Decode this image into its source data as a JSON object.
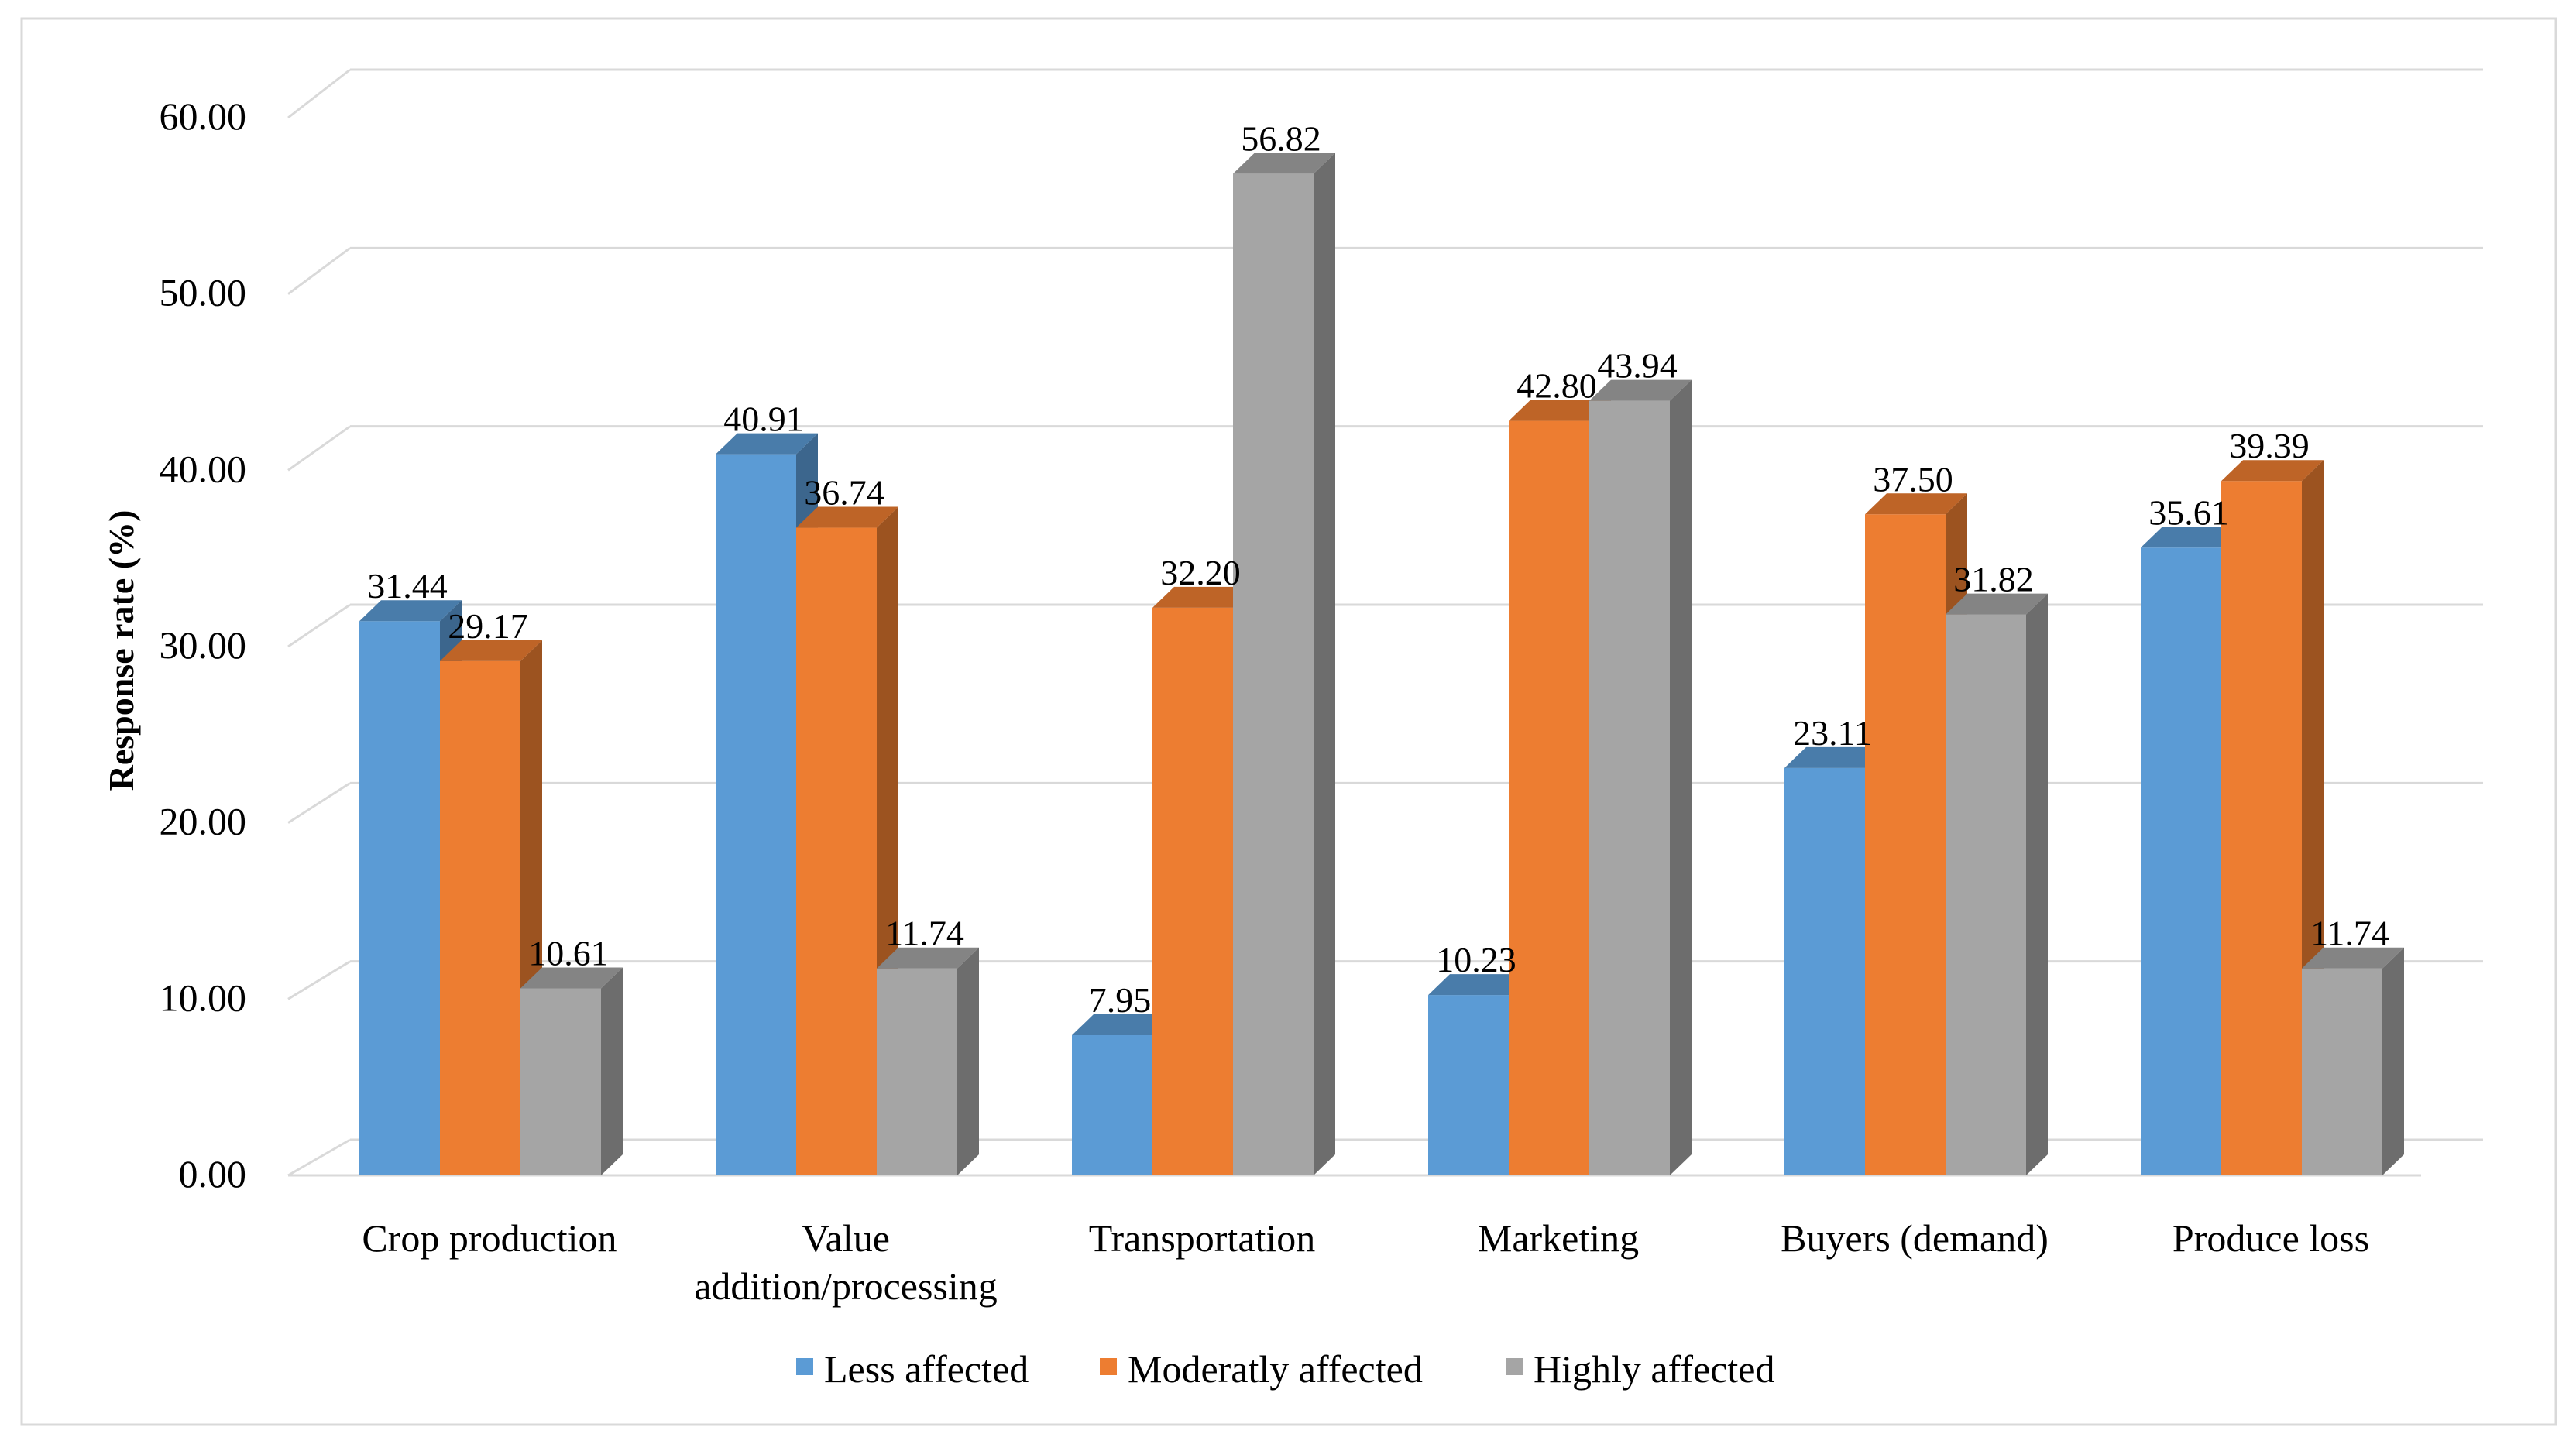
{
  "chart_data": {
    "type": "bar",
    "title": "",
    "xlabel": "",
    "ylabel": "Response rate (%)",
    "ylim": [
      0,
      60
    ],
    "yticks": [
      "0.00",
      "10.00",
      "20.00",
      "30.00",
      "40.00",
      "50.00",
      "60.00"
    ],
    "grid": true,
    "legend_position": "bottom",
    "categories": [
      [
        "Crop production"
      ],
      [
        "Value",
        "addition/processing"
      ],
      [
        "Transportation"
      ],
      [
        "Marketing"
      ],
      [
        "Buyers (demand)"
      ],
      [
        "Produce loss"
      ]
    ],
    "series": [
      {
        "name": "Less affected",
        "color": "#5B9BD5",
        "values": [
          31.44,
          40.91,
          7.95,
          10.23,
          23.11,
          35.61
        ],
        "labels": [
          "31.44",
          "40.91",
          "7.95",
          "10.23",
          "23.11",
          "35.61"
        ]
      },
      {
        "name": "Moderatly affected",
        "color": "#ED7D31",
        "values": [
          29.17,
          36.74,
          32.2,
          42.8,
          37.5,
          39.39
        ],
        "labels": [
          "29.17",
          "36.74",
          "32.20",
          "42.80",
          "37.50",
          "39.39"
        ]
      },
      {
        "name": "Highly affected",
        "color": "#A5A5A5",
        "values": [
          10.61,
          11.74,
          56.82,
          43.94,
          31.82,
          11.74
        ],
        "labels": [
          "10.61",
          "11.74",
          "56.82",
          "43.94",
          "31.82",
          "11.74"
        ]
      }
    ]
  }
}
